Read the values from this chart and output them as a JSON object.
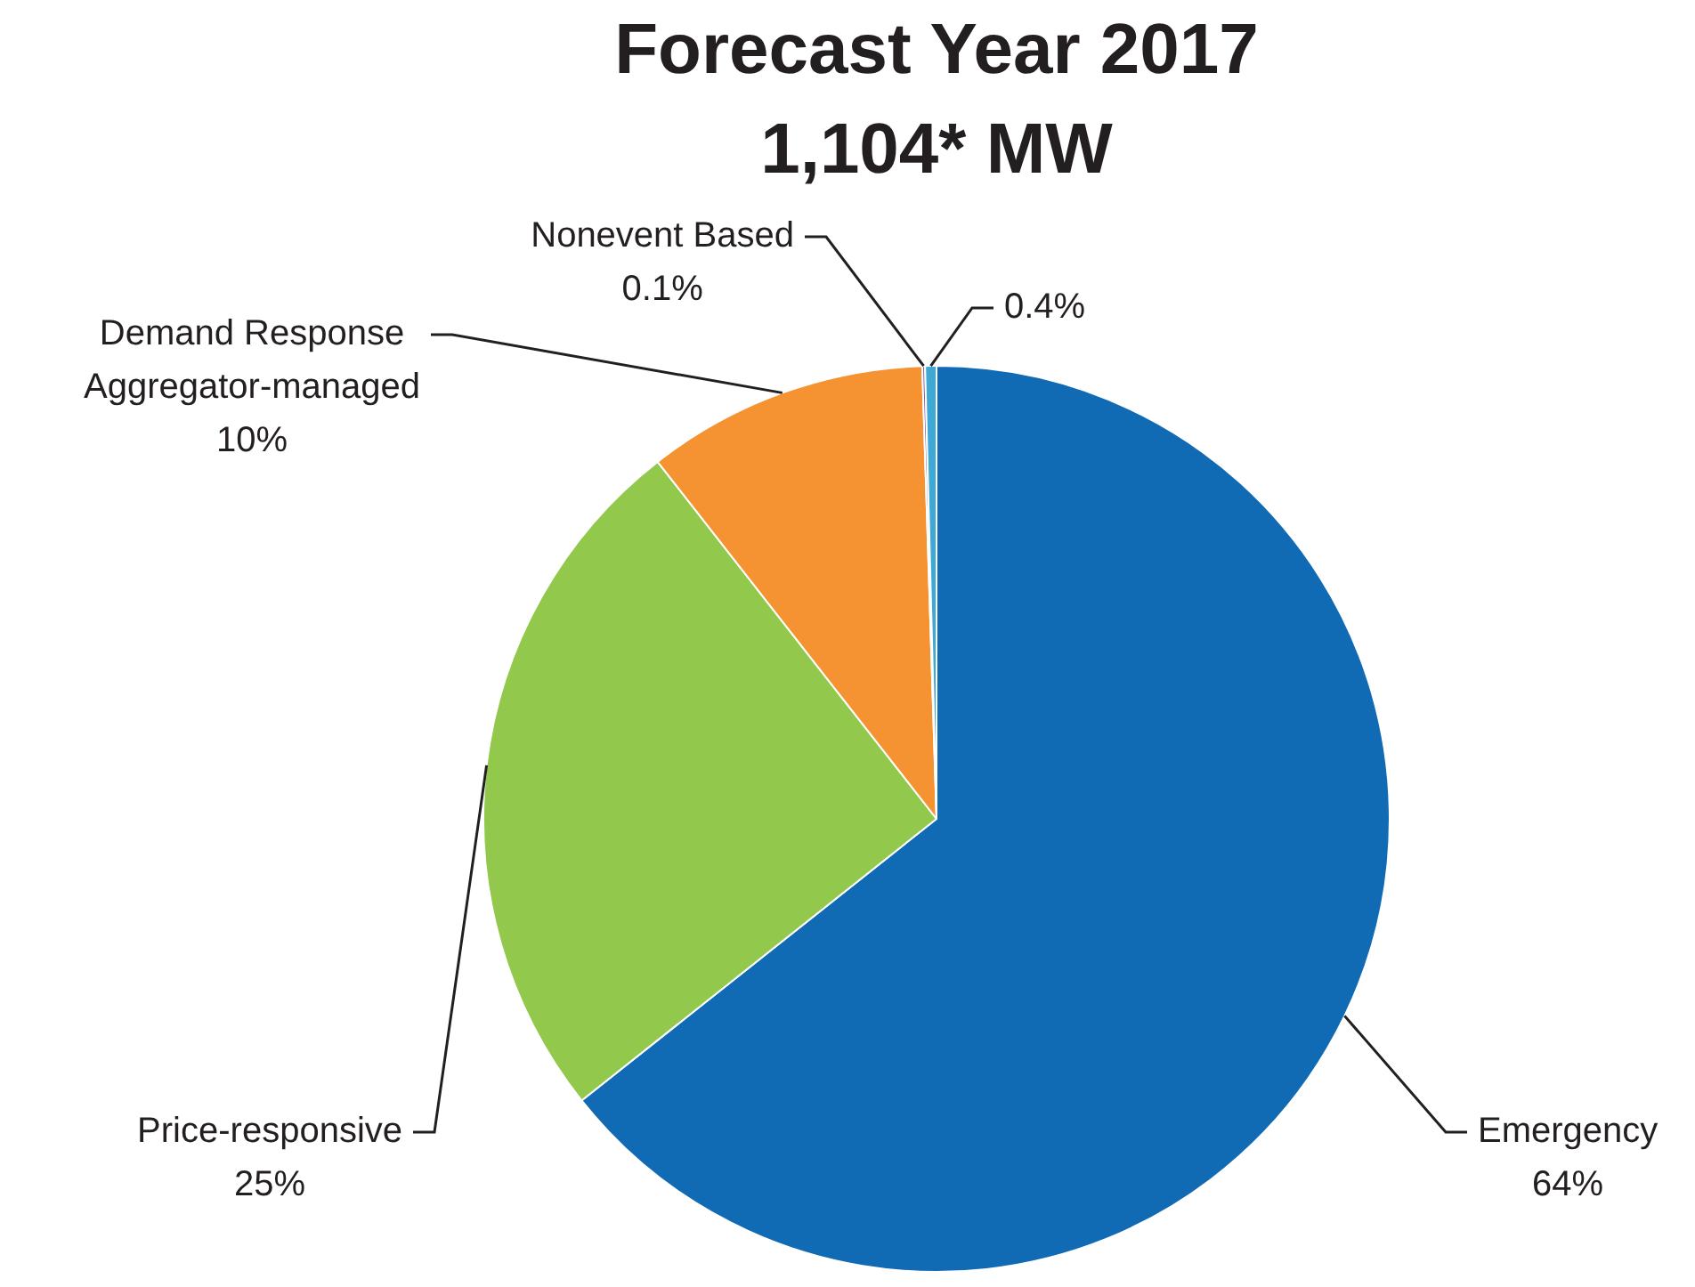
{
  "chart_data": {
    "type": "pie",
    "title": "Forecast Year 2017",
    "subtitle": "1,104* MW",
    "categories": [
      "Emergency",
      "Price-responsive",
      "Demand Response Aggregator-managed",
      "Nonevent Based",
      null
    ],
    "values": [
      64,
      25,
      10,
      0.1,
      0.4
    ],
    "value_labels": [
      "64%",
      "25%",
      "10%",
      "0.1%",
      "0.4%"
    ],
    "colors": [
      "#106ab4",
      "#92c84c",
      "#f59333",
      "#7b5aa6",
      "#3fa9d5"
    ],
    "legend": false
  }
}
